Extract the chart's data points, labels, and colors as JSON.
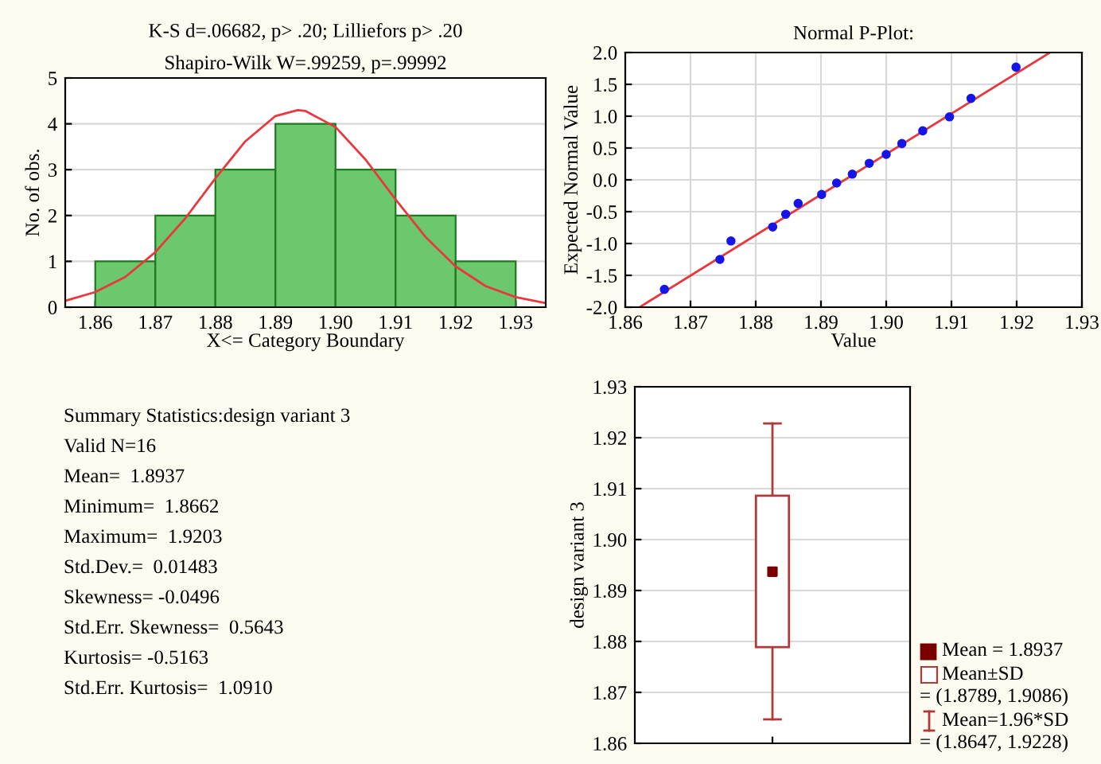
{
  "chart_data": [
    {
      "type": "histogram",
      "title": "K-S d=.06682, p> .20; Lilliefors p> .20",
      "subtitle": "Shapiro-Wilk W=.99259, p=.99992",
      "xlabel": "X<= Category Boundary",
      "ylabel": "No. of obs.",
      "bins": [
        1.86,
        1.87,
        1.88,
        1.89,
        1.9,
        1.91,
        1.92,
        1.93
      ],
      "series": [
        {
          "type": "histogram",
          "color": "#6cc86c",
          "values": [
            1,
            2,
            3,
            4,
            3,
            2,
            1
          ]
        },
        {
          "type": "line",
          "color": "#e8383d",
          "x": [
            1.855,
            1.86,
            1.865,
            1.87,
            1.875,
            1.88,
            1.885,
            1.89,
            1.8937,
            1.895,
            1.9,
            1.905,
            1.91,
            1.915,
            1.92,
            1.925,
            1.93,
            1.935
          ],
          "values": [
            0.14,
            0.33,
            0.66,
            1.2,
            1.94,
            2.81,
            3.62,
            4.17,
            4.3,
            4.28,
            3.93,
            3.22,
            2.35,
            1.53,
            0.89,
            0.46,
            0.22,
            0.09
          ]
        }
      ],
      "xlim": [
        1.855,
        1.935
      ],
      "xticks": [
        1.86,
        1.87,
        1.88,
        1.89,
        {
          "value": 1.9,
          "label": "1.90"
        },
        1.91,
        1.92,
        1.93
      ],
      "ylim": [
        0,
        5
      ],
      "yticks": [
        0,
        1,
        2,
        3,
        4,
        5
      ],
      "grid": "y"
    },
    {
      "type": "scatter",
      "title": "Normal P-Plot:",
      "xlabel": "Value",
      "ylabel": "Expected Normal Value",
      "series": [
        {
          "type": "scatter",
          "marker": "circle",
          "color": "#1515e8",
          "x": [
            1.866,
            1.8745,
            1.8762,
            1.8826,
            1.8846,
            1.8865,
            1.8901,
            1.8924,
            1.8948,
            1.8974,
            1.9,
            1.9024,
            1.9056,
            1.9097,
            1.913,
            1.9199
          ],
          "values": [
            -1.72,
            -1.25,
            -0.96,
            -0.74,
            -0.54,
            -0.37,
            -0.23,
            -0.05,
            0.09,
            0.26,
            0.4,
            0.57,
            0.77,
            0.99,
            1.28,
            1.77
          ]
        },
        {
          "type": "line",
          "color": "#e8383d",
          "x": [
            1.8622,
            1.9251
          ],
          "values": [
            -2.0,
            2.0
          ]
        }
      ],
      "xlim": [
        1.86,
        1.93
      ],
      "xticks": [
        1.86,
        1.87,
        1.88,
        1.89,
        {
          "value": 1.9,
          "label": "1.90"
        },
        1.91,
        1.92,
        1.93
      ],
      "ylim": [
        -2.0,
        2.0
      ],
      "yticks": [
        {
          "value": -2,
          "label": "-2.0"
        },
        -1.5,
        {
          "value": -1,
          "label": "-1.0"
        },
        -0.5,
        {
          "value": 0,
          "label": "0.0"
        },
        0.5,
        {
          "value": 1,
          "label": "1.0"
        },
        1.5,
        {
          "value": 2,
          "label": "2.0"
        }
      ],
      "grid": true
    },
    {
      "type": "other",
      "title": "Summary Statistics:design variant 3",
      "annotations": [
        "Valid N=16",
        "Mean=  1.8937",
        "Minimum=  1.8662",
        "Maximum=  1.9203",
        "Std.Dev.=  0.01483",
        "Skewness= -0.0496",
        "Std.Err. Skewness=  0.5643",
        "Kurtosis= -0.5163",
        "Std.Err. Kurtosis=  1.0910"
      ]
    },
    {
      "type": "box",
      "ylabel": "design variant 3",
      "categories": [
        null
      ],
      "series": [
        {
          "color": "#b03a3a",
          "boxes": [
            {
              "low": 1.8647,
              "q1": 1.8789,
              "q3": 1.9086,
              "high": 1.9228,
              "mean": 1.8937
            }
          ]
        }
      ],
      "ylim": [
        1.86,
        1.93
      ],
      "yticks": [
        1.86,
        1.87,
        1.88,
        1.89,
        {
          "value": 1.9,
          "label": "1.90"
        },
        1.91,
        1.92,
        1.93
      ],
      "grid": "y",
      "annotations": [
        "Mean = 1.8937",
        "Mean±SD",
        "= (1.8789, 1.9086)",
        "Mean=1.96*SD",
        "= (1.8647, 1.9228)"
      ]
    }
  ]
}
